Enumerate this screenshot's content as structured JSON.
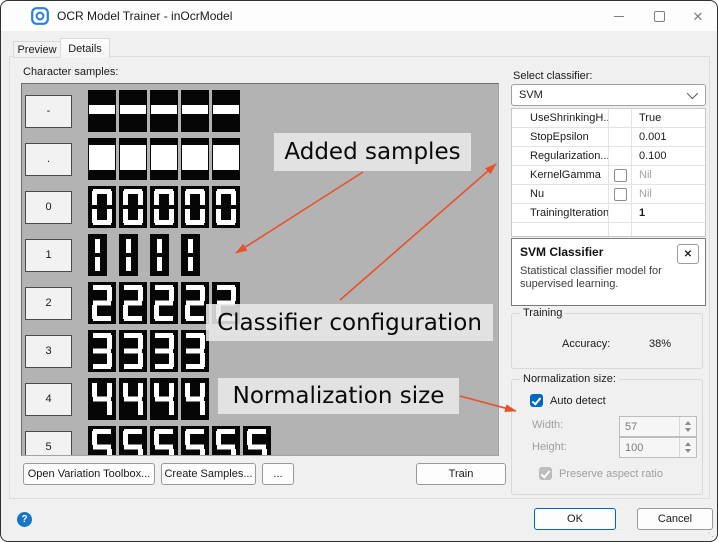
{
  "window": {
    "title": "OCR Model Trainer - inOcrModel"
  },
  "icons": {
    "close": "✕",
    "help": "?",
    "grip": "⋱"
  },
  "tabs": [
    {
      "label": "Preview",
      "active": false
    },
    {
      "label": "Details",
      "active": true
    }
  ],
  "samples": {
    "label": "Character samples:",
    "rows": [
      {
        "char": "-",
        "count": 5
      },
      {
        "char": ".",
        "count": 5
      },
      {
        "char": "0",
        "count": 5
      },
      {
        "char": "1",
        "count": 4
      },
      {
        "char": "2",
        "count": 5
      },
      {
        "char": "3",
        "count": 4
      },
      {
        "char": "4",
        "count": 4
      },
      {
        "char": "5",
        "count": 6
      }
    ]
  },
  "classifier": {
    "label": "Select classifier:",
    "selected": "SVM",
    "properties": [
      {
        "name": "UseShrinkingH...",
        "has_checkbox": false,
        "checked": false,
        "value": "True",
        "muted": false,
        "bold": false
      },
      {
        "name": "StopEpsilon",
        "has_checkbox": false,
        "checked": false,
        "value": "0.001",
        "muted": false,
        "bold": false
      },
      {
        "name": "Regularization...",
        "has_checkbox": false,
        "checked": false,
        "value": "0.100",
        "muted": false,
        "bold": false
      },
      {
        "name": "KernelGamma",
        "has_checkbox": true,
        "checked": false,
        "value": "Nil",
        "muted": true,
        "bold": false
      },
      {
        "name": "Nu",
        "has_checkbox": true,
        "checked": false,
        "value": "Nil",
        "muted": true,
        "bold": false
      },
      {
        "name": "TrainingIteration",
        "has_checkbox": false,
        "checked": false,
        "value": "1",
        "muted": false,
        "bold": true
      }
    ],
    "info": {
      "title": "SVM Classifier",
      "description": "Statistical classifier model for supervised learning."
    }
  },
  "training": {
    "label": "Training",
    "accuracy_label": "Accuracy:",
    "accuracy_value": "38%"
  },
  "normalization": {
    "label": "Normalization size:",
    "auto_detect_label": "Auto detect",
    "auto_detect_checked": true,
    "width_label": "Width:",
    "width_value": "57",
    "height_label": "Height:",
    "height_value": "100",
    "preserve_label": "Preserve aspect ratio",
    "preserve_checked": true
  },
  "buttons": {
    "open_variation": "Open Variation Toolbox...",
    "create_samples": "Create Samples...",
    "more": "...",
    "train": "Train",
    "ok": "OK",
    "cancel": "Cancel"
  },
  "annotations": {
    "added": "Added samples",
    "classifier": "Classifier configuration",
    "normalization": "Normalization size",
    "arrow_color": "#e8512a"
  },
  "colors": {
    "accent": "#0067c0",
    "samples_panel": "#b3b3b3",
    "tile_background": "#060606"
  }
}
